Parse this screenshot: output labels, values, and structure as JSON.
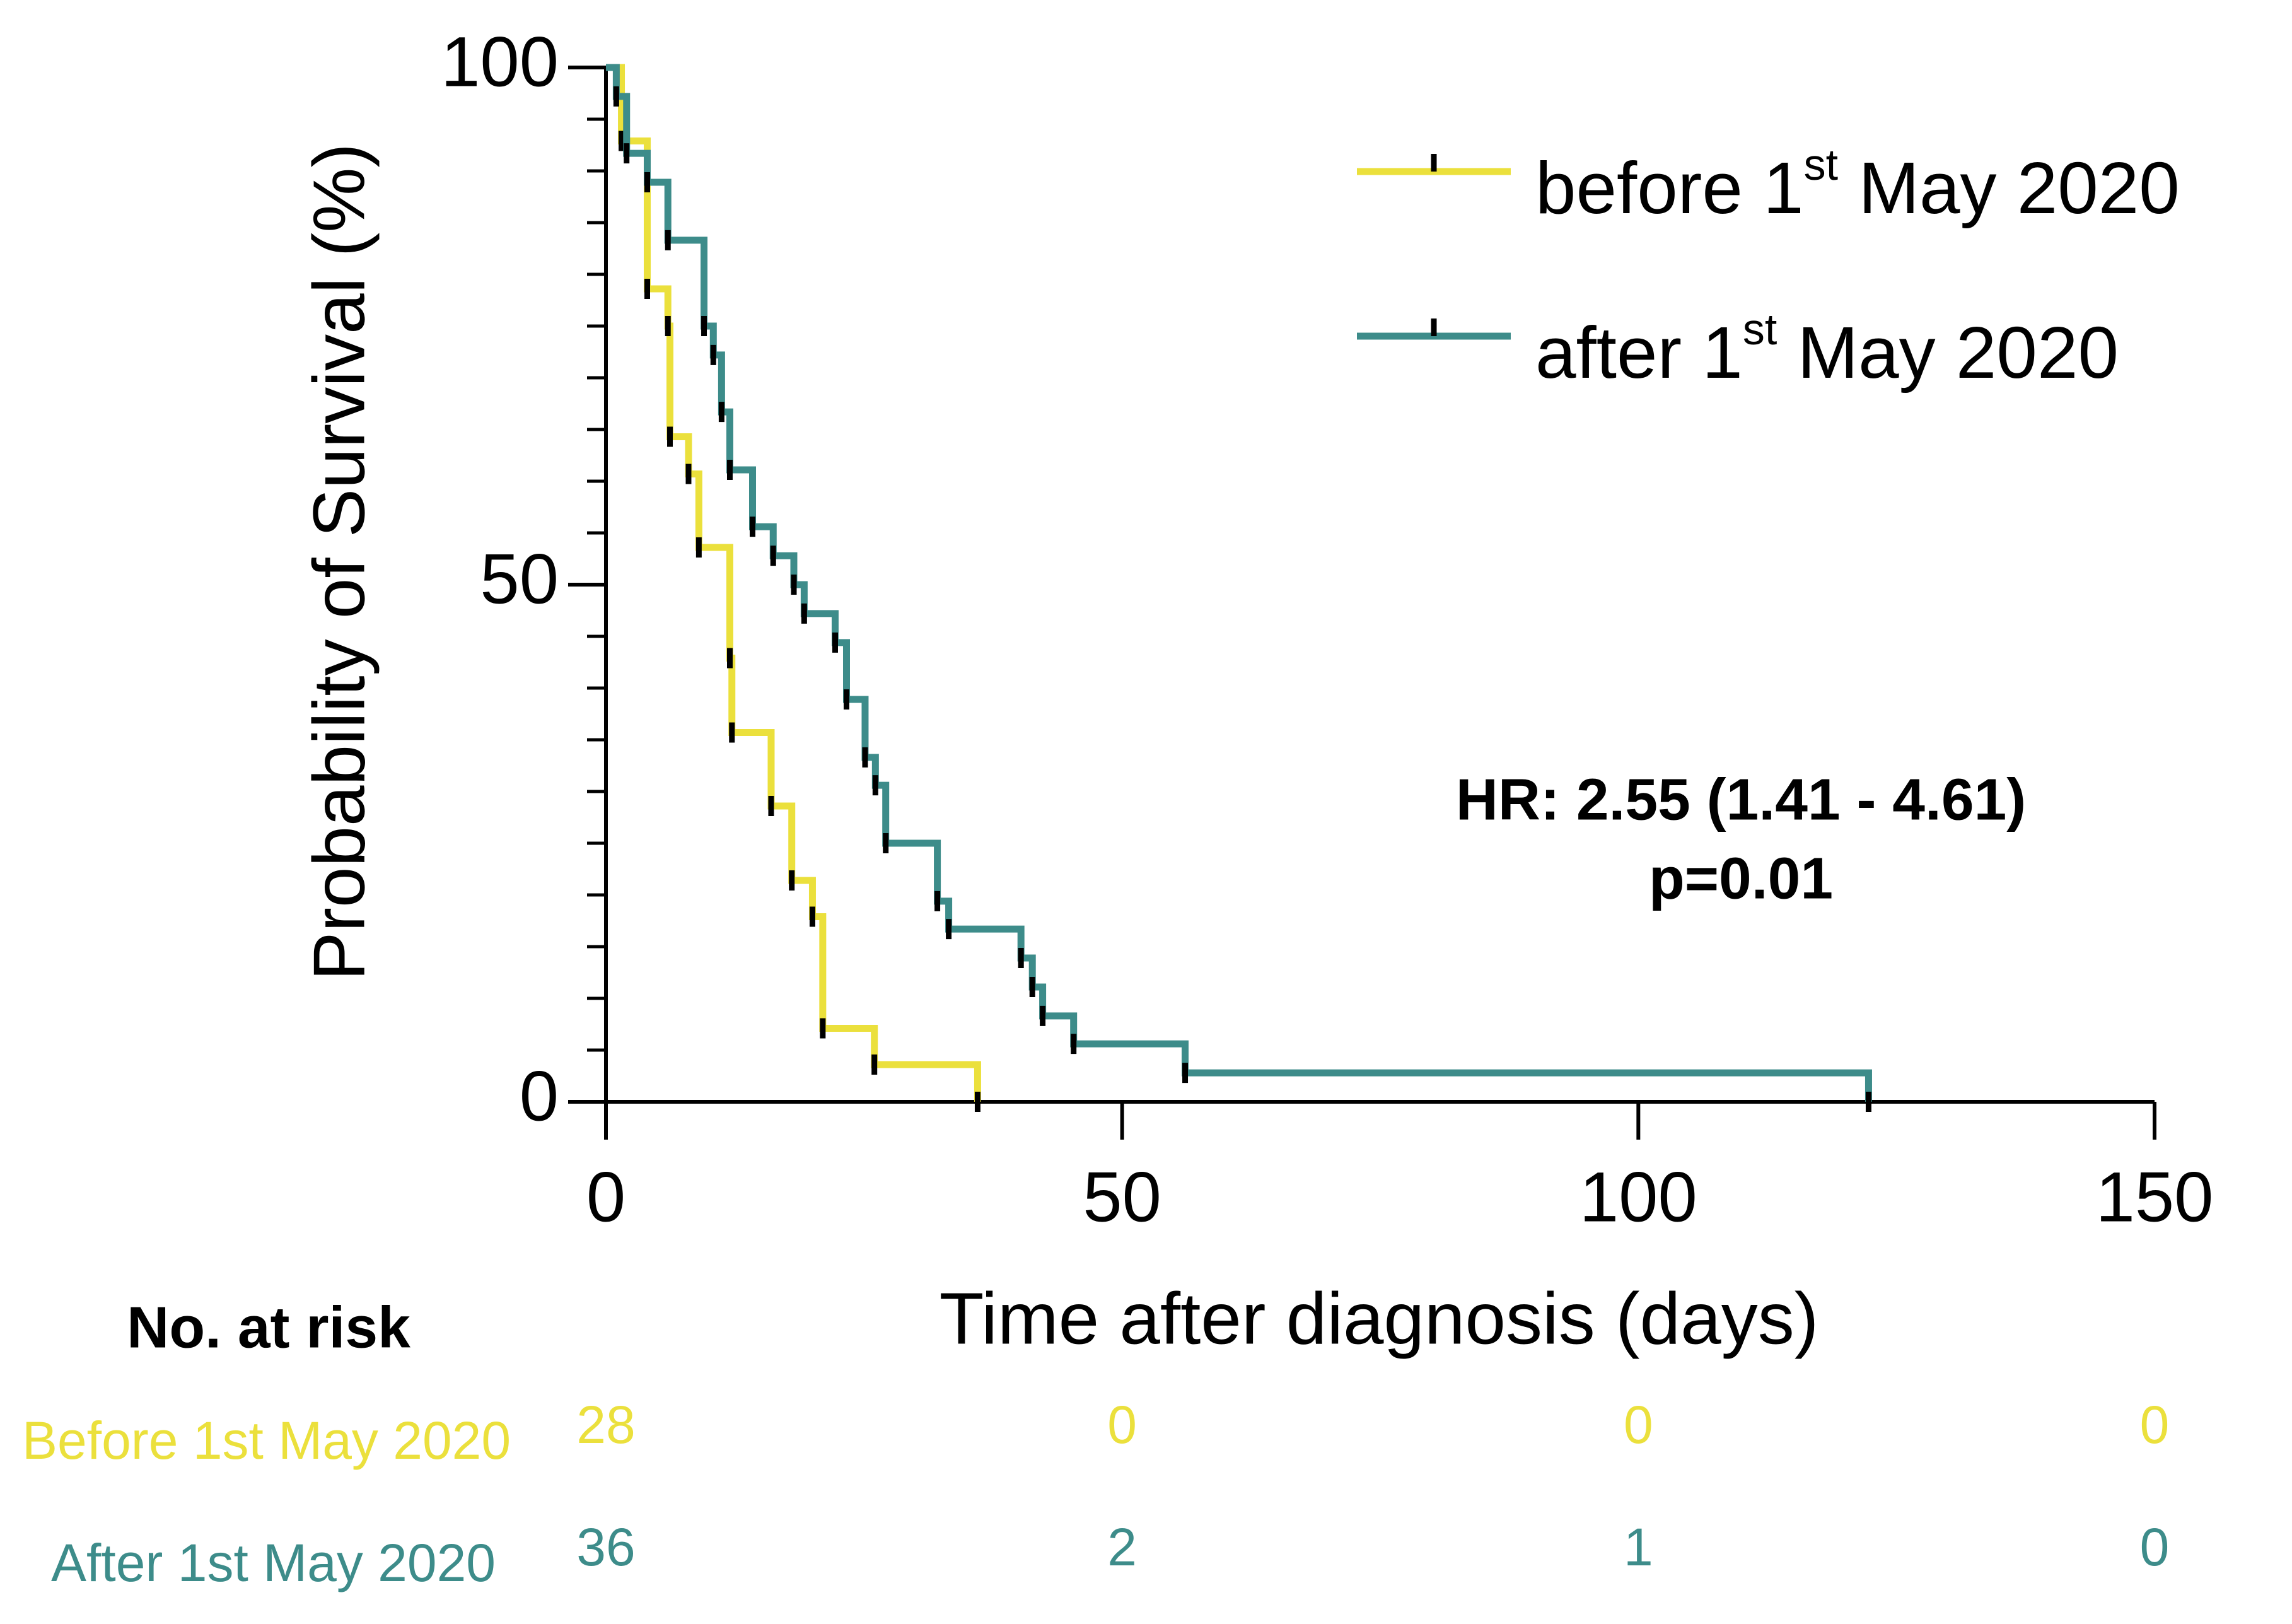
{
  "chart_data": {
    "type": "step",
    "x_label": "Time after diagnosis (days)",
    "y_label": "Probability of Survival (%)",
    "xlim": [
      0,
      150
    ],
    "xticks": [
      0,
      50,
      100,
      150
    ],
    "ylim": [
      0,
      100
    ],
    "yticks": [
      0,
      50,
      100
    ],
    "yminor": 5,
    "legend": "upper right",
    "annotations": [
      "HR: 2.55 (1.41 - 4.61)",
      "p=0.01"
    ],
    "series": [
      {
        "name": "before 1st May 2020",
        "color": "#ebe03c",
        "x": [
          0,
          1.5,
          4,
          6,
          6.2,
          8,
          9,
          12,
          12.2,
          16,
          18,
          20,
          21,
          26,
          36
        ],
        "values": [
          100,
          92.9,
          78.6,
          75,
          64.3,
          60.7,
          53.6,
          42.9,
          35.7,
          28.6,
          21.4,
          17.9,
          7.1,
          3.6,
          0
        ]
      },
      {
        "name": "after 1st May 2020",
        "color": "#3d8c8a",
        "x": [
          0,
          1,
          2,
          4,
          6,
          9.5,
          10.4,
          11.2,
          12,
          14.2,
          16.2,
          18.2,
          19.2,
          22.2,
          23.3,
          25.1,
          26.1,
          27.1,
          32.1,
          33.2,
          40.2,
          41.3,
          42.3,
          45.3,
          56.1,
          122.3
        ],
        "values": [
          100,
          97.2,
          91.7,
          88.9,
          83.3,
          75,
          72.2,
          66.7,
          61.1,
          55.6,
          52.8,
          50,
          47.2,
          44.4,
          38.9,
          33.3,
          30.6,
          25,
          19.4,
          16.7,
          13.9,
          11.1,
          8.3,
          5.6,
          2.8,
          0
        ]
      }
    ],
    "risk_table": {
      "title": "No. at risk",
      "rows": [
        {
          "name": "Before 1st May 2020",
          "counts": [
            28,
            0,
            0,
            0
          ]
        },
        {
          "name": "After 1st May 2020",
          "counts": [
            36,
            2,
            1,
            0
          ]
        }
      ]
    }
  }
}
